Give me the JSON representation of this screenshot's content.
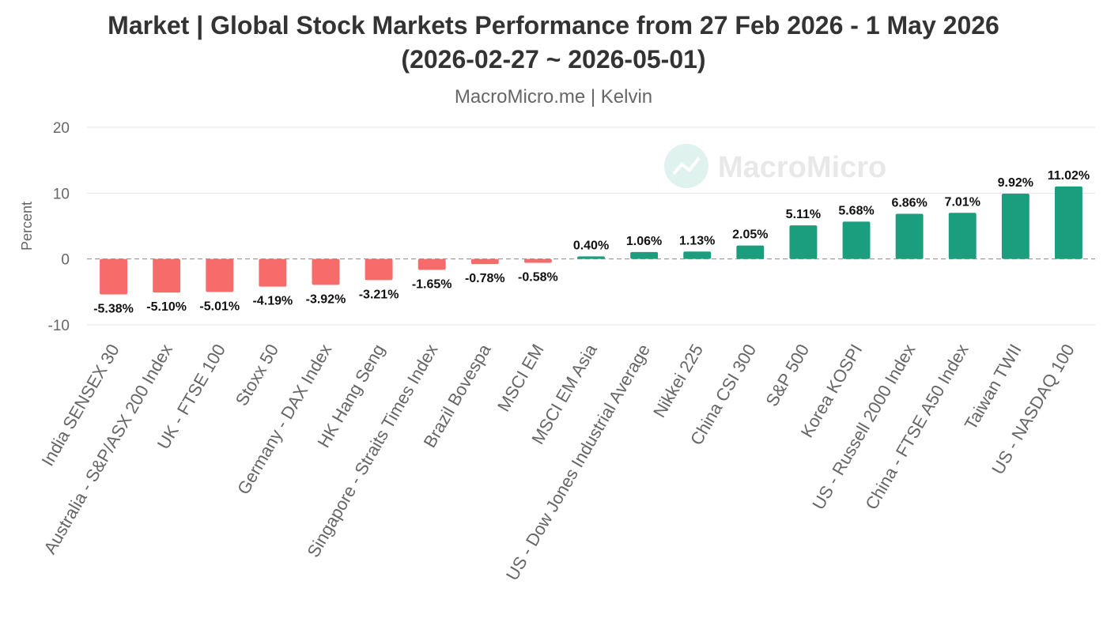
{
  "chart_data": {
    "type": "bar",
    "title": "Market | Global Stock Markets Performance from 27 Feb 2026 - 1 May 2026",
    "subtitle": "(2026-02-27 ~ 2026-05-01)",
    "source": "MacroMicro.me | Kelvin",
    "watermark": "MacroMicro",
    "ylabel": "Percent",
    "xlabel": "",
    "ylim": [
      -10,
      20
    ],
    "yticks": [
      -10,
      0,
      10,
      20
    ],
    "grid": true,
    "legend": "none",
    "colors": {
      "positive": "#1b9e7e",
      "negative": "#f76b6b"
    },
    "categories": [
      "India SENSEX 30",
      "Australia - S&P/ASX 200 Index",
      "UK - FTSE 100",
      "Stoxx 50",
      "Germany - DAX Index",
      "HK Hang Seng",
      "Singapore - Straits Times Index",
      "Brazil Bovespa",
      "MSCI EM",
      "MSCI EM Asia",
      "US - Dow Jones Industrial Average",
      "Nikkei 225",
      "China CSI 300",
      "S&P 500",
      "Korea KOSPI",
      "US - Russell 2000 Index",
      "China - FTSE A50 Index",
      "Taiwan TWII",
      "US - NASDAQ 100"
    ],
    "values": [
      -5.38,
      -5.1,
      -5.01,
      -4.19,
      -3.92,
      -3.21,
      -1.65,
      -0.78,
      -0.58,
      0.4,
      1.06,
      1.13,
      2.05,
      5.11,
      5.68,
      6.86,
      7.01,
      9.92,
      11.02
    ],
    "data_labels": [
      "-5.38%",
      "-5.10%",
      "-5.01%",
      "-4.19%",
      "-3.92%",
      "-3.21%",
      "-1.65%",
      "-0.78%",
      "-0.58%",
      "0.40%",
      "1.06%",
      "1.13%",
      "2.05%",
      "5.11%",
      "5.68%",
      "6.86%",
      "7.01%",
      "9.92%",
      "11.02%"
    ]
  }
}
